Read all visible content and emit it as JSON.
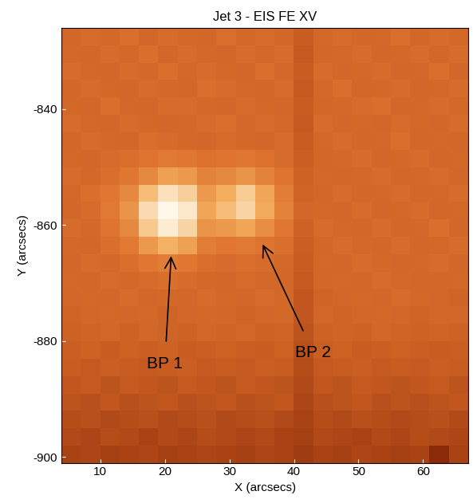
{
  "chart_data": {
    "type": "heatmap",
    "title": "Jet 3 - EIS FE XV",
    "x_label": "X (arcsecs)",
    "y_label": "Y (arcsecs)",
    "xlim": [
      4,
      67
    ],
    "ylim": [
      -901,
      -826
    ],
    "xticks": [
      10,
      20,
      30,
      40,
      50,
      60
    ],
    "yticks": [
      -900,
      -880,
      -860,
      -840
    ],
    "zlim": [
      30,
      100
    ],
    "annotations": [
      "BP 1",
      "BP 2"
    ],
    "cells": [
      [
        50,
        52,
        51,
        53,
        50,
        52,
        51,
        50,
        53,
        51,
        52,
        50,
        46,
        51,
        52,
        50,
        51,
        53,
        50,
        52,
        51
      ],
      [
        51,
        50,
        52,
        51,
        53,
        50,
        52,
        51,
        50,
        52,
        51,
        52,
        45,
        50,
        51,
        52,
        50,
        51,
        52,
        50,
        52
      ],
      [
        52,
        51,
        50,
        52,
        51,
        53,
        51,
        52,
        51,
        50,
        53,
        51,
        46,
        52,
        50,
        51,
        52,
        50,
        51,
        53,
        50
      ],
      [
        50,
        52,
        51,
        50,
        52,
        51,
        50,
        53,
        52,
        51,
        50,
        52,
        45,
        51,
        53,
        50,
        51,
        52,
        50,
        51,
        52
      ],
      [
        51,
        50,
        53,
        51,
        50,
        52,
        52,
        51,
        50,
        52,
        51,
        50,
        46,
        50,
        51,
        52,
        53,
        50,
        51,
        52,
        51
      ],
      [
        52,
        51,
        50,
        52,
        51,
        50,
        51,
        52,
        53,
        51,
        52,
        51,
        45,
        52,
        50,
        51,
        50,
        52,
        51,
        50,
        52
      ],
      [
        50,
        52,
        51,
        50,
        53,
        52,
        51,
        50,
        52,
        51,
        50,
        52,
        46,
        51,
        52,
        50,
        51,
        53,
        50,
        51,
        50
      ],
      [
        51,
        50,
        52,
        53,
        55,
        57,
        56,
        54,
        55,
        56,
        54,
        52,
        47,
        50,
        51,
        52,
        50,
        51,
        52,
        50,
        51
      ],
      [
        52,
        51,
        53,
        56,
        62,
        70,
        68,
        60,
        62,
        66,
        60,
        55,
        48,
        51,
        50,
        51,
        52,
        50,
        51,
        52,
        50
      ],
      [
        51,
        53,
        56,
        62,
        80,
        92,
        86,
        68,
        75,
        85,
        72,
        58,
        49,
        50,
        52,
        50,
        51,
        52,
        50,
        51,
        52
      ],
      [
        50,
        52,
        57,
        66,
        90,
        100,
        95,
        72,
        80,
        88,
        74,
        60,
        50,
        51,
        50,
        52,
        50,
        51,
        52,
        50,
        51
      ],
      [
        52,
        51,
        55,
        62,
        84,
        96,
        88,
        66,
        68,
        72,
        64,
        56,
        48,
        52,
        51,
        50,
        52,
        50,
        51,
        53,
        50
      ],
      [
        51,
        50,
        53,
        57,
        68,
        76,
        70,
        58,
        56,
        57,
        55,
        53,
        47,
        50,
        52,
        51,
        50,
        52,
        50,
        51,
        52
      ],
      [
        50,
        52,
        51,
        53,
        56,
        58,
        56,
        53,
        52,
        53,
        52,
        51,
        46,
        51,
        50,
        52,
        51,
        50,
        51,
        52,
        50
      ],
      [
        51,
        50,
        52,
        51,
        52,
        53,
        52,
        51,
        50,
        52,
        51,
        50,
        45,
        50,
        51,
        50,
        52,
        51,
        50,
        50,
        51
      ],
      [
        50,
        51,
        50,
        52,
        50,
        51,
        50,
        52,
        51,
        50,
        52,
        51,
        44,
        49,
        50,
        51,
        50,
        52,
        51,
        50,
        49
      ],
      [
        49,
        50,
        51,
        50,
        51,
        49,
        50,
        51,
        50,
        49,
        50,
        51,
        44,
        50,
        49,
        50,
        51,
        50,
        49,
        50,
        50
      ],
      [
        48,
        49,
        50,
        48,
        50,
        49,
        48,
        50,
        49,
        50,
        48,
        49,
        43,
        48,
        49,
        48,
        50,
        49,
        48,
        49,
        48
      ],
      [
        47,
        48,
        46,
        48,
        47,
        48,
        46,
        47,
        48,
        47,
        46,
        48,
        42,
        47,
        48,
        46,
        47,
        48,
        47,
        46,
        47
      ],
      [
        46,
        45,
        47,
        46,
        45,
        46,
        47,
        45,
        46,
        45,
        47,
        46,
        41,
        45,
        46,
        47,
        45,
        46,
        45,
        47,
        46
      ],
      [
        44,
        45,
        43,
        45,
        44,
        43,
        45,
        44,
        43,
        45,
        44,
        43,
        40,
        44,
        43,
        45,
        44,
        43,
        44,
        45,
        43
      ],
      [
        43,
        42,
        44,
        42,
        43,
        44,
        42,
        43,
        44,
        42,
        43,
        44,
        39,
        42,
        43,
        44,
        42,
        43,
        42,
        43,
        44
      ],
      [
        41,
        42,
        40,
        41,
        42,
        40,
        41,
        42,
        40,
        41,
        42,
        40,
        38,
        41,
        40,
        42,
        41,
        40,
        41,
        42,
        40
      ],
      [
        40,
        39,
        41,
        40,
        38,
        40,
        39,
        41,
        40,
        39,
        40,
        38,
        37,
        40,
        39,
        38,
        40,
        39,
        41,
        40,
        39
      ],
      [
        38,
        39,
        37,
        38,
        39,
        37,
        38,
        39,
        38,
        37,
        39,
        38,
        36,
        38,
        37,
        39,
        38,
        37,
        38,
        30,
        38
      ]
    ]
  }
}
